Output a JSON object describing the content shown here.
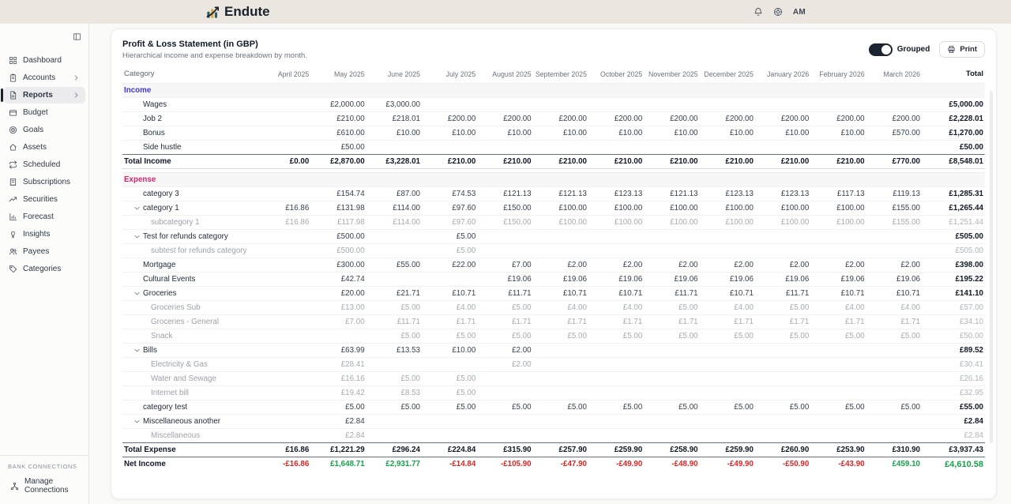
{
  "app": {
    "name": "Endute"
  },
  "header": {
    "user_initials": "AM"
  },
  "sidebar": {
    "items": [
      {
        "label": "Dashboard",
        "icon": "dashboard-icon",
        "chevron": false,
        "active": false
      },
      {
        "label": "Accounts",
        "icon": "accounts-icon",
        "chevron": true,
        "active": false
      },
      {
        "label": "Reports",
        "icon": "reports-icon",
        "chevron": true,
        "active": true
      },
      {
        "label": "Budget",
        "icon": "budget-icon",
        "chevron": false,
        "active": false
      },
      {
        "label": "Goals",
        "icon": "goals-icon",
        "chevron": false,
        "active": false
      },
      {
        "label": "Assets",
        "icon": "assets-icon",
        "chevron": false,
        "active": false
      },
      {
        "label": "Scheduled",
        "icon": "scheduled-icon",
        "chevron": false,
        "active": false
      },
      {
        "label": "Subscriptions",
        "icon": "subscriptions-icon",
        "chevron": false,
        "active": false
      },
      {
        "label": "Securities",
        "icon": "securities-icon",
        "chevron": false,
        "active": false
      },
      {
        "label": "Forecast",
        "icon": "forecast-icon",
        "chevron": false,
        "active": false
      },
      {
        "label": "Insights",
        "icon": "insights-icon",
        "chevron": false,
        "active": false
      },
      {
        "label": "Payees",
        "icon": "payees-icon",
        "chevron": false,
        "active": false
      },
      {
        "label": "Categories",
        "icon": "categories-icon",
        "chevron": false,
        "active": false
      }
    ],
    "bank_connections_label": "BANK CONNECTIONS",
    "manage_connections_label": "Manage Connections"
  },
  "report": {
    "title": "Profit & Loss Statement (in GBP)",
    "subtitle": "Hierarchical income and expense breakdown by month.",
    "grouped_label": "Grouped",
    "print_label": "Print"
  },
  "colors": {
    "income_label": "#4338ca",
    "expense_label": "#d6246e",
    "negative": "#dc2626",
    "positive": "#16a34a",
    "toggle_on": "#1b2431",
    "logo_teal": "#2e5f63",
    "logo_gold": "#ddaa33"
  },
  "table": {
    "columns": [
      "Category",
      "April 2025",
      "May 2025",
      "June 2025",
      "July 2025",
      "August 2025",
      "September 2025",
      "October 2025",
      "November 2025",
      "December 2025",
      "January 2026",
      "February 2026",
      "March 2026",
      "Total"
    ],
    "sections": [
      {
        "label": "Income",
        "kind": "income",
        "rows": [
          {
            "name": "Wages",
            "type": "item",
            "expandable": false,
            "values": [
              "",
              "£2,000.00",
              "£3,000.00",
              "",
              "",
              "",
              "",
              "",
              "",
              "",
              "",
              ""
            ],
            "total": "£5,000.00"
          },
          {
            "name": "Job 2",
            "type": "item",
            "expandable": false,
            "values": [
              "",
              "£210.00",
              "£218.01",
              "£200.00",
              "£200.00",
              "£200.00",
              "£200.00",
              "£200.00",
              "£200.00",
              "£200.00",
              "£200.00",
              "£200.00"
            ],
            "total": "£2,228.01"
          },
          {
            "name": "Bonus",
            "type": "item",
            "expandable": false,
            "values": [
              "",
              "£610.00",
              "£10.00",
              "£10.00",
              "£10.00",
              "£10.00",
              "£10.00",
              "£10.00",
              "£10.00",
              "£10.00",
              "£10.00",
              "£570.00"
            ],
            "total": "£1,270.00"
          },
          {
            "name": "Side hustle",
            "type": "item",
            "expandable": false,
            "values": [
              "",
              "£50.00",
              "",
              "",
              "",
              "",
              "",
              "",
              "",
              "",
              "",
              ""
            ],
            "total": "£50.00"
          }
        ],
        "total_row": {
          "name": "Total Income",
          "values": [
            "£0.00",
            "£2,870.00",
            "£3,228.01",
            "£210.00",
            "£210.00",
            "£210.00",
            "£210.00",
            "£210.00",
            "£210.00",
            "£210.00",
            "£210.00",
            "£770.00"
          ],
          "total": "£8,548.01"
        }
      },
      {
        "label": "Expense",
        "kind": "expense",
        "rows": [
          {
            "name": "category 3",
            "type": "item",
            "expandable": false,
            "values": [
              "",
              "£154.74",
              "£87.00",
              "£74.53",
              "£121.13",
              "£121.13",
              "£123.13",
              "£121.13",
              "£123.13",
              "£123.13",
              "£117.13",
              "£119.13"
            ],
            "total": "£1,285.31"
          },
          {
            "name": "category 1",
            "type": "item",
            "expandable": true,
            "values": [
              "£16.86",
              "£131.98",
              "£114.00",
              "£97.60",
              "£150.00",
              "£100.00",
              "£100.00",
              "£100.00",
              "£100.00",
              "£100.00",
              "£100.00",
              "£155.00"
            ],
            "total": "£1,265.44"
          },
          {
            "name": "subcategory 1",
            "type": "sub",
            "expandable": false,
            "values": [
              "£16.86",
              "£117.98",
              "£114.00",
              "£97.60",
              "£150.00",
              "£100.00",
              "£100.00",
              "£100.00",
              "£100.00",
              "£100.00",
              "£100.00",
              "£155.00"
            ],
            "total": "£1,251.44"
          },
          {
            "name": "Test for refunds category",
            "type": "item",
            "expandable": true,
            "values": [
              "",
              "£500.00",
              "",
              "£5.00",
              "",
              "",
              "",
              "",
              "",
              "",
              "",
              ""
            ],
            "total": "£505.00"
          },
          {
            "name": "subtest for refunds category",
            "type": "sub",
            "expandable": false,
            "values": [
              "",
              "£500.00",
              "",
              "£5.00",
              "",
              "",
              "",
              "",
              "",
              "",
              "",
              ""
            ],
            "total": "£505.00"
          },
          {
            "name": "Mortgage",
            "type": "item",
            "expandable": false,
            "values": [
              "",
              "£300.00",
              "£55.00",
              "£22.00",
              "£7.00",
              "£2.00",
              "£2.00",
              "£2.00",
              "£2.00",
              "£2.00",
              "£2.00",
              "£2.00"
            ],
            "total": "£398.00"
          },
          {
            "name": "Cultural Events",
            "type": "item",
            "expandable": false,
            "values": [
              "",
              "£42.74",
              "",
              "",
              "£19.06",
              "£19.06",
              "£19.06",
              "£19.06",
              "£19.06",
              "£19.06",
              "£19.06",
              "£19.06"
            ],
            "total": "£195.22"
          },
          {
            "name": "Groceries",
            "type": "item",
            "expandable": true,
            "values": [
              "",
              "£20.00",
              "£21.71",
              "£10.71",
              "£11.71",
              "£10.71",
              "£10.71",
              "£11.71",
              "£10.71",
              "£11.71",
              "£10.71",
              "£10.71"
            ],
            "total": "£141.10"
          },
          {
            "name": "Groceries Sub",
            "type": "sub",
            "expandable": false,
            "values": [
              "",
              "£13.00",
              "£5.00",
              "£4.00",
              "£5.00",
              "£4.00",
              "£4.00",
              "£5.00",
              "£4.00",
              "£5.00",
              "£4.00",
              "£4.00"
            ],
            "total": "£57.00"
          },
          {
            "name": "Groceries - General",
            "type": "sub",
            "expandable": false,
            "values": [
              "",
              "£7.00",
              "£11.71",
              "£1.71",
              "£1.71",
              "£1.71",
              "£1.71",
              "£1.71",
              "£1.71",
              "£1.71",
              "£1.71",
              "£1.71"
            ],
            "total": "£34.10"
          },
          {
            "name": "Snack",
            "type": "sub",
            "expandable": false,
            "values": [
              "",
              "",
              "£5.00",
              "£5.00",
              "£5.00",
              "£5.00",
              "£5.00",
              "£5.00",
              "£5.00",
              "£5.00",
              "£5.00",
              "£5.00"
            ],
            "total": "£50.00"
          },
          {
            "name": "Bills",
            "type": "item",
            "expandable": true,
            "values": [
              "",
              "£63.99",
              "£13.53",
              "£10.00",
              "£2.00",
              "",
              "",
              "",
              "",
              "",
              "",
              ""
            ],
            "total": "£89.52"
          },
          {
            "name": "Electricity & Gas",
            "type": "sub",
            "expandable": false,
            "values": [
              "",
              "£28.41",
              "",
              "",
              "£2.00",
              "",
              "",
              "",
              "",
              "",
              "",
              ""
            ],
            "total": "£30.41"
          },
          {
            "name": "Water and Sewage",
            "type": "sub",
            "expandable": false,
            "values": [
              "",
              "£16.16",
              "£5.00",
              "£5.00",
              "",
              "",
              "",
              "",
              "",
              "",
              "",
              ""
            ],
            "total": "£26.16"
          },
          {
            "name": "Internet bill",
            "type": "sub",
            "expandable": false,
            "values": [
              "",
              "£19.42",
              "£8.53",
              "£5.00",
              "",
              "",
              "",
              "",
              "",
              "",
              "",
              ""
            ],
            "total": "£32.95"
          },
          {
            "name": "category test",
            "type": "item",
            "expandable": false,
            "values": [
              "",
              "£5.00",
              "£5.00",
              "£5.00",
              "£5.00",
              "£5.00",
              "£5.00",
              "£5.00",
              "£5.00",
              "£5.00",
              "£5.00",
              "£5.00"
            ],
            "total": "£55.00"
          },
          {
            "name": "Miscellaneous another",
            "type": "item",
            "expandable": true,
            "values": [
              "",
              "£2.84",
              "",
              "",
              "",
              "",
              "",
              "",
              "",
              "",
              "",
              ""
            ],
            "total": "£2.84"
          },
          {
            "name": "Miscellaneous",
            "type": "sub",
            "expandable": false,
            "values": [
              "",
              "£2.84",
              "",
              "",
              "",
              "",
              "",
              "",
              "",
              "",
              "",
              ""
            ],
            "total": "£2.84"
          }
        ],
        "total_row": {
          "name": "Total Expense",
          "values": [
            "£16.86",
            "£1,221.29",
            "£296.24",
            "£224.84",
            "£315.90",
            "£257.90",
            "£259.90",
            "£258.90",
            "£259.90",
            "£260.90",
            "£253.90",
            "£310.90"
          ],
          "total": "£3,937.43"
        }
      }
    ],
    "net_row": {
      "name": "Net Income",
      "values": [
        "-£16.86",
        "£1,648.71",
        "£2,931.77",
        "-£14.84",
        "-£105.90",
        "-£47.90",
        "-£49.90",
        "-£48.90",
        "-£49.90",
        "-£50.90",
        "-£43.90",
        "£459.10"
      ],
      "total": "£4,610.58"
    }
  }
}
